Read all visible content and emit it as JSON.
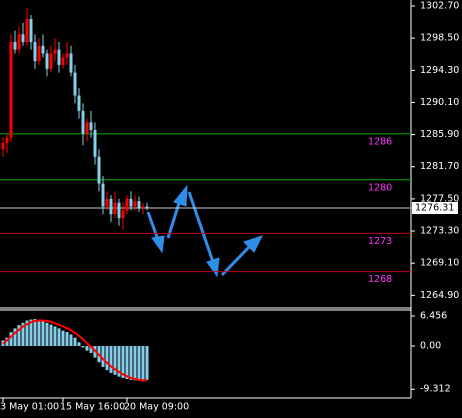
{
  "chart_data": [
    {
      "type": "candlestick",
      "categories": [
        "3 May 01:00",
        null,
        null,
        null,
        null,
        null,
        null,
        null,
        null,
        null,
        null,
        null,
        null,
        null,
        null,
        "15 May 16:00",
        null,
        null,
        null,
        null,
        null,
        null,
        null,
        null,
        null,
        null,
        null,
        null,
        null,
        null,
        null,
        "20 May 09:00",
        null,
        null,
        null,
        null,
        null
      ],
      "open": [
        1284.0,
        1284.8,
        1285.5,
        1298.0,
        1297.0,
        1299.0,
        1298.0,
        1301.0,
        1298.0,
        1295.5,
        1297.5,
        1296.5,
        1294.5,
        1296.5,
        1297.0,
        1295.0,
        1296.0,
        1296.5,
        1294.0,
        1291.0,
        1289.0,
        1286.0,
        1287.5,
        1286.5,
        1283.0,
        1279.5,
        1276.5,
        1277.5,
        1275.5,
        1277.0,
        1275.0,
        1276.0,
        1277.5,
        1276.5,
        1277.2,
        1276.3,
        1276.5
      ],
      "high": [
        1285.5,
        1286.0,
        1299.0,
        1299.5,
        1300.0,
        1300.5,
        1302.5,
        1301.5,
        1299.0,
        1298.5,
        1299.0,
        1297.0,
        1297.5,
        1298.5,
        1298.0,
        1296.5,
        1298.0,
        1297.5,
        1295.0,
        1292.0,
        1290.0,
        1288.0,
        1289.0,
        1287.5,
        1284.0,
        1280.5,
        1278.5,
        1278.0,
        1278.5,
        1277.5,
        1277.0,
        1278.0,
        1278.5,
        1278.0,
        1277.8,
        1277.0,
        1277.0
      ],
      "low": [
        1283.0,
        1283.5,
        1285.0,
        1296.5,
        1296.5,
        1297.5,
        1297.5,
        1297.0,
        1294.5,
        1295.0,
        1296.0,
        1293.5,
        1294.0,
        1295.5,
        1294.0,
        1294.5,
        1295.0,
        1293.5,
        1290.0,
        1288.0,
        1284.5,
        1285.0,
        1285.5,
        1282.0,
        1278.5,
        1275.5,
        1276.0,
        1274.5,
        1275.0,
        1274.0,
        1273.5,
        1275.5,
        1276.0,
        1276.0,
        1275.8,
        1275.5,
        1276.0
      ],
      "close": [
        1284.8,
        1285.5,
        1298.0,
        1297.0,
        1299.0,
        1298.0,
        1301.0,
        1298.0,
        1295.5,
        1297.5,
        1296.5,
        1294.5,
        1296.5,
        1297.0,
        1295.0,
        1296.0,
        1296.5,
        1294.0,
        1291.0,
        1289.0,
        1286.0,
        1287.5,
        1286.5,
        1283.0,
        1279.5,
        1276.5,
        1277.5,
        1275.5,
        1277.0,
        1275.0,
        1276.0,
        1277.5,
        1276.5,
        1277.2,
        1276.3,
        1276.5,
        1276.31
      ],
      "up_color": "#ff0000",
      "down_color": "#87ceeb",
      "ylim": [
        1302.7,
        1263.9
      ],
      "yticks": [
        {
          "value": 1302.7,
          "label": "1302.70"
        },
        {
          "value": 1298.5,
          "label": "1298.50"
        },
        {
          "value": 1294.3,
          "label": "1294.30"
        },
        {
          "value": 1290.1,
          "label": "1290.10"
        },
        {
          "value": 1285.9,
          "label": "1285.90"
        },
        {
          "value": 1281.7,
          "label": "1281.70"
        },
        {
          "value": 1277.5,
          "label": "1277.50"
        },
        {
          "value": 1273.3,
          "label": "1273.30"
        },
        {
          "value": 1269.1,
          "label": "1269.10"
        },
        {
          "value": 1264.9,
          "label": "1264.90"
        }
      ],
      "levels": [
        {
          "value": 1286,
          "color": "#00b000"
        },
        {
          "value": 1280,
          "color": "#00b000"
        },
        {
          "value": 1273,
          "color": "#c00020"
        },
        {
          "value": 1268,
          "color": "#c00020"
        }
      ],
      "level_label_color": "#ff33ff",
      "current_price": 1276.31
    },
    {
      "type": "bar",
      "series": [
        {
          "color": "#87ceeb",
          "values": [
            1.2,
            1.8,
            3.0,
            3.8,
            4.5,
            5.0,
            5.5,
            5.7,
            5.8,
            5.6,
            5.3,
            5.0,
            4.6,
            4.2,
            3.8,
            3.3,
            3.0,
            2.5,
            1.8,
            0.8,
            -0.3,
            -1.0,
            -1.5,
            -2.5,
            -3.5,
            -4.5,
            -5.2,
            -5.8,
            -6.2,
            -6.6,
            -6.9,
            -7.1,
            -7.3,
            -7.4,
            -7.5,
            -7.4,
            -7.3
          ]
        },
        {
          "color": "#ff0000",
          "values": [
            0.5,
            1.2,
            2.0,
            2.8,
            3.5,
            4.2,
            4.7,
            5.1,
            5.4,
            5.5,
            5.5,
            5.4,
            5.2,
            4.9,
            4.6,
            4.2,
            3.8,
            3.4,
            2.8,
            2.2,
            1.4,
            0.6,
            -0.2,
            -1.0,
            -1.9,
            -2.8,
            -3.6,
            -4.4,
            -5.0,
            -5.6,
            -6.1,
            -6.5,
            -6.9,
            -7.1,
            -7.3,
            -7.4,
            -7.4
          ]
        }
      ],
      "ylim": [
        7.75,
        -11.2
      ],
      "yticks": [
        6.456,
        {
          "value": 0,
          "label": "0.00"
        },
        -9.312
      ]
    }
  ]
}
